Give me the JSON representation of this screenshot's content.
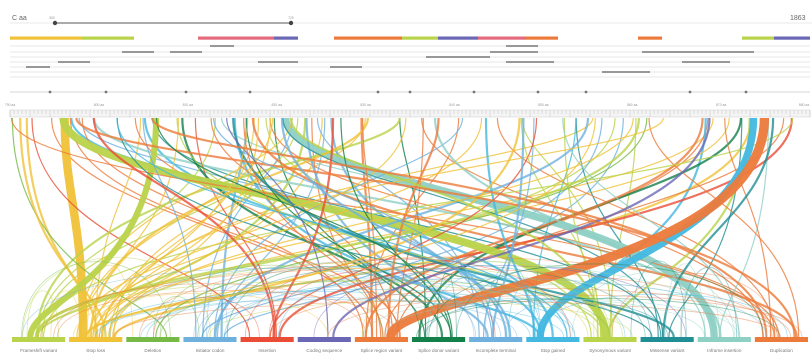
{
  "header": {
    "left_label": "C aa",
    "right_label": "1863",
    "marker_a": "360",
    "marker_b": "720"
  },
  "colors": {
    "yellow": "#f0c238",
    "lime": "#b9d34a",
    "pink": "#e46b7e",
    "purple": "#6a67b5",
    "orange": "#ec7a3b",
    "lightblue": "#6fb1de",
    "red": "#ea4c36",
    "darkgreen": "#13804a",
    "cyan": "#43b8e0",
    "green": "#76ba45",
    "teal": "#1f8e95",
    "mint": "#8fd0c5",
    "gray": "#a9a9a9"
  },
  "feature_track": [
    {
      "color": "yellow",
      "start": 0.0,
      "end": 0.09
    },
    {
      "color": "lime",
      "start": 0.09,
      "end": 0.155
    },
    {
      "color": "pink",
      "start": 0.235,
      "end": 0.33
    },
    {
      "color": "purple",
      "start": 0.33,
      "end": 0.36
    },
    {
      "color": "orange",
      "start": 0.405,
      "end": 0.49
    },
    {
      "color": "lime",
      "start": 0.49,
      "end": 0.535
    },
    {
      "color": "purple",
      "start": 0.535,
      "end": 0.585
    },
    {
      "color": "pink",
      "start": 0.585,
      "end": 0.645
    },
    {
      "color": "orange",
      "start": 0.645,
      "end": 0.685
    },
    {
      "color": "orange",
      "start": 0.785,
      "end": 0.815
    },
    {
      "color": "lime",
      "start": 0.915,
      "end": 0.955
    },
    {
      "color": "purple",
      "start": 0.955,
      "end": 1.0
    }
  ],
  "axis_ticks": [
    "790 aa",
    "800 aa",
    "810 aa",
    "820 aa",
    "830 aa",
    "840 aa",
    "850 aa",
    "860 aa",
    "870 aa",
    "880 aa"
  ],
  "categories": [
    {
      "label": "Frameshift variant",
      "color": "lime"
    },
    {
      "label": "Stop loss",
      "color": "yellow"
    },
    {
      "label": "Deletion",
      "color": "green"
    },
    {
      "label": "Initiator codon",
      "color": "lightblue"
    },
    {
      "label": "Insertion",
      "color": "red"
    },
    {
      "label": "Coding sequence",
      "color": "purple"
    },
    {
      "label": "Splice region variant",
      "color": "orange"
    },
    {
      "label": "Splice donor variant",
      "color": "darkgreen"
    },
    {
      "label": "Incomplete terminal",
      "color": "lightblue"
    },
    {
      "label": "Stop gained",
      "color": "cyan"
    },
    {
      "label": "Synonymous variant",
      "color": "lime"
    },
    {
      "label": "Missense variant",
      "color": "teal"
    },
    {
      "label": "Inframe insertion",
      "color": "mint"
    },
    {
      "label": "Duplication",
      "color": "orange"
    }
  ]
}
